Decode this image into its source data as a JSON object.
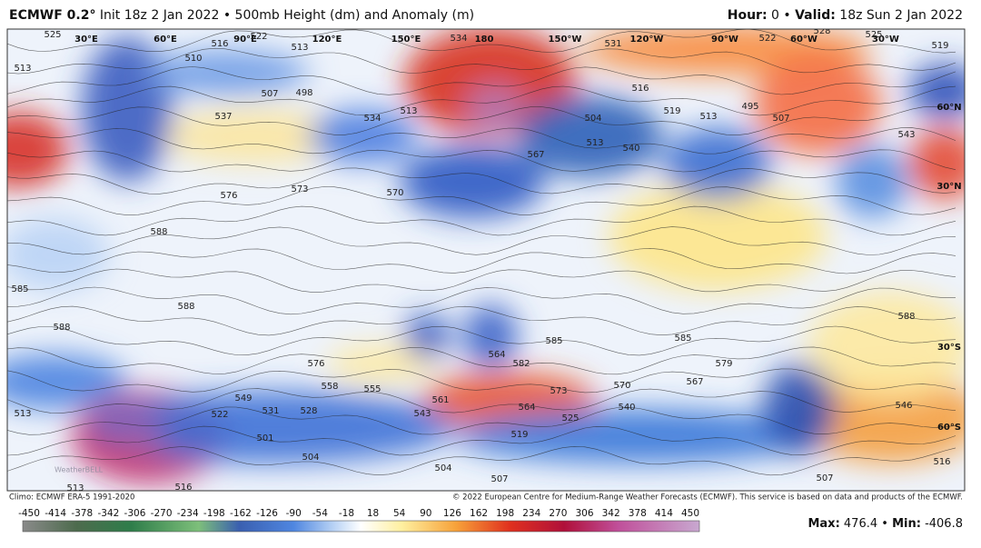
{
  "header": {
    "model": "ECMWF 0.2°",
    "init": "Init 18z 2 Jan 2022",
    "separator": "•",
    "product": "500mb Height (dm) and Anomaly (m)",
    "hour_label": "Hour:",
    "hour": 0,
    "valid_label": "Valid:",
    "valid": "18z Sun 2 Jan 2022"
  },
  "map": {
    "lon_labels": [
      "30°E",
      "60°E",
      "90°E",
      "120°E",
      "150°E",
      "180",
      "150°W",
      "120°W",
      "90°W",
      "60°W",
      "30°W"
    ],
    "lat_labels": [
      "60°N",
      "30°N",
      "30°S",
      "60°S"
    ],
    "contour_labels": [
      525,
      516,
      522,
      513,
      534,
      531,
      522,
      528,
      525,
      519,
      513,
      510,
      507,
      498,
      537,
      534,
      513,
      504,
      513,
      516,
      519,
      513,
      495,
      507,
      543,
      567,
      573,
      576,
      570,
      588,
      585,
      588,
      588,
      585,
      585,
      588,
      576,
      558,
      555,
      549,
      522,
      531,
      528,
      561,
      543,
      564,
      525,
      573,
      570,
      567,
      540,
      579,
      546,
      501,
      504,
      519,
      516,
      507,
      504,
      513,
      516,
      507,
      513,
      540,
      582,
      564
    ]
  },
  "footer": {
    "climo": "Climo: ECMWF ERA-5 1991-2020",
    "copyright": "© 2022 European Centre for Medium-Range Weather Forecasts (ECMWF). This service is based on data and products of the ECMWF.",
    "watermark": "WeatherBELL"
  },
  "colorbar": {
    "ticks": [
      -450,
      -414,
      -378,
      -342,
      -306,
      -270,
      -234,
      -198,
      -162,
      -126,
      -90,
      -54,
      -18,
      18,
      54,
      90,
      126,
      162,
      198,
      234,
      270,
      306,
      342,
      378,
      414,
      450
    ]
  },
  "stats": {
    "max_label": "Max:",
    "max": 476.4,
    "separator": "•",
    "min_label": "Min:",
    "min": -406.8
  }
}
